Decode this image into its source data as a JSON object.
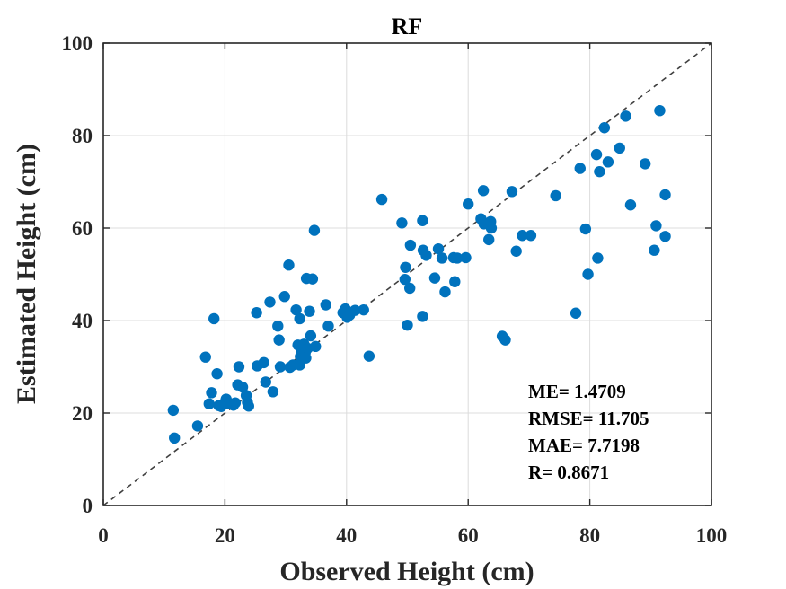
{
  "chart_data": {
    "type": "scatter",
    "title": "RF",
    "xlabel": "Observed Height (cm)",
    "ylabel": "Estimated Height (cm)",
    "xlim": [
      0,
      100
    ],
    "ylim": [
      0,
      100
    ],
    "xticks": [
      0,
      20,
      40,
      60,
      80,
      100
    ],
    "yticks": [
      0,
      20,
      40,
      60,
      80,
      100
    ],
    "xtick_labels": [
      "0",
      "20",
      "40",
      "60",
      "80",
      "100"
    ],
    "ytick_labels": [
      "0",
      "20",
      "40",
      "60",
      "80",
      "100"
    ],
    "grid": true,
    "reference_line": "1:1 dashed diagonal",
    "marker_color": "#0072BD",
    "stats": [
      "ME= 1.4709",
      "RMSE= 11.705",
      "MAE= 7.7198",
      "R= 0.8671"
    ],
    "points": [
      [
        11.5,
        20.6
      ],
      [
        11.7,
        14.6
      ],
      [
        15.5,
        17.2
      ],
      [
        16.8,
        32.1
      ],
      [
        17.4,
        22.0
      ],
      [
        17.8,
        24.4
      ],
      [
        18.2,
        40.4
      ],
      [
        18.7,
        28.5
      ],
      [
        19.0,
        21.6
      ],
      [
        19.4,
        21.4
      ],
      [
        20.0,
        22.3
      ],
      [
        20.2,
        23.0
      ],
      [
        20.7,
        22.0
      ],
      [
        21.4,
        21.7
      ],
      [
        21.7,
        22.2
      ],
      [
        22.1,
        26.1
      ],
      [
        22.3,
        30.0
      ],
      [
        22.9,
        25.6
      ],
      [
        23.5,
        23.8
      ],
      [
        23.7,
        22.3
      ],
      [
        23.9,
        21.5
      ],
      [
        25.2,
        41.7
      ],
      [
        25.3,
        30.2
      ],
      [
        26.4,
        30.9
      ],
      [
        26.7,
        26.7
      ],
      [
        27.4,
        44.0
      ],
      [
        27.9,
        24.6
      ],
      [
        28.7,
        38.8
      ],
      [
        28.9,
        35.8
      ],
      [
        29.1,
        30.0
      ],
      [
        29.8,
        45.2
      ],
      [
        30.5,
        52.0
      ],
      [
        30.7,
        29.9
      ],
      [
        31.2,
        30.4
      ],
      [
        31.7,
        42.3
      ],
      [
        32.0,
        34.7
      ],
      [
        32.3,
        40.4
      ],
      [
        32.3,
        30.4
      ],
      [
        32.4,
        32.2
      ],
      [
        32.6,
        33.3
      ],
      [
        33.0,
        34.9
      ],
      [
        33.2,
        33.0
      ],
      [
        33.3,
        31.9
      ],
      [
        33.4,
        49.1
      ],
      [
        33.6,
        34.0
      ],
      [
        33.9,
        42.0
      ],
      [
        34.1,
        36.7
      ],
      [
        34.4,
        49.0
      ],
      [
        34.7,
        59.5
      ],
      [
        34.9,
        34.4
      ],
      [
        36.6,
        43.4
      ],
      [
        37.0,
        38.8
      ],
      [
        39.4,
        41.7
      ],
      [
        39.8,
        42.5
      ],
      [
        40.1,
        40.7
      ],
      [
        40.5,
        41.2
      ],
      [
        41.4,
        42.2
      ],
      [
        42.8,
        42.3
      ],
      [
        43.7,
        32.3
      ],
      [
        45.8,
        66.2
      ],
      [
        49.1,
        61.1
      ],
      [
        49.6,
        48.9
      ],
      [
        49.7,
        51.5
      ],
      [
        50.0,
        39.0
      ],
      [
        50.4,
        47.0
      ],
      [
        50.5,
        56.3
      ],
      [
        52.5,
        40.9
      ],
      [
        52.5,
        61.6
      ],
      [
        52.6,
        55.2
      ],
      [
        53.1,
        54.1
      ],
      [
        54.5,
        49.2
      ],
      [
        55.1,
        55.5
      ],
      [
        55.7,
        53.5
      ],
      [
        56.2,
        46.2
      ],
      [
        57.6,
        53.6
      ],
      [
        57.8,
        48.4
      ],
      [
        58.2,
        53.5
      ],
      [
        59.6,
        53.6
      ],
      [
        60.0,
        65.2
      ],
      [
        62.1,
        62.0
      ],
      [
        62.5,
        68.1
      ],
      [
        62.6,
        60.9
      ],
      [
        63.4,
        57.5
      ],
      [
        63.7,
        61.4
      ],
      [
        63.8,
        60.0
      ],
      [
        65.6,
        36.6
      ],
      [
        66.1,
        35.8
      ],
      [
        67.2,
        67.9
      ],
      [
        67.9,
        55.0
      ],
      [
        68.9,
        58.4
      ],
      [
        70.3,
        58.4
      ],
      [
        74.4,
        67.0
      ],
      [
        77.7,
        41.6
      ],
      [
        78.4,
        72.9
      ],
      [
        79.3,
        59.8
      ],
      [
        79.7,
        50.0
      ],
      [
        81.1,
        75.9
      ],
      [
        81.3,
        53.5
      ],
      [
        81.6,
        72.2
      ],
      [
        82.4,
        81.7
      ],
      [
        83.0,
        74.3
      ],
      [
        84.9,
        77.3
      ],
      [
        85.9,
        84.2
      ],
      [
        86.7,
        65.0
      ],
      [
        89.1,
        73.9
      ],
      [
        90.6,
        55.2
      ],
      [
        90.9,
        60.5
      ],
      [
        91.5,
        85.4
      ],
      [
        92.4,
        67.2
      ],
      [
        92.4,
        58.2
      ]
    ]
  }
}
